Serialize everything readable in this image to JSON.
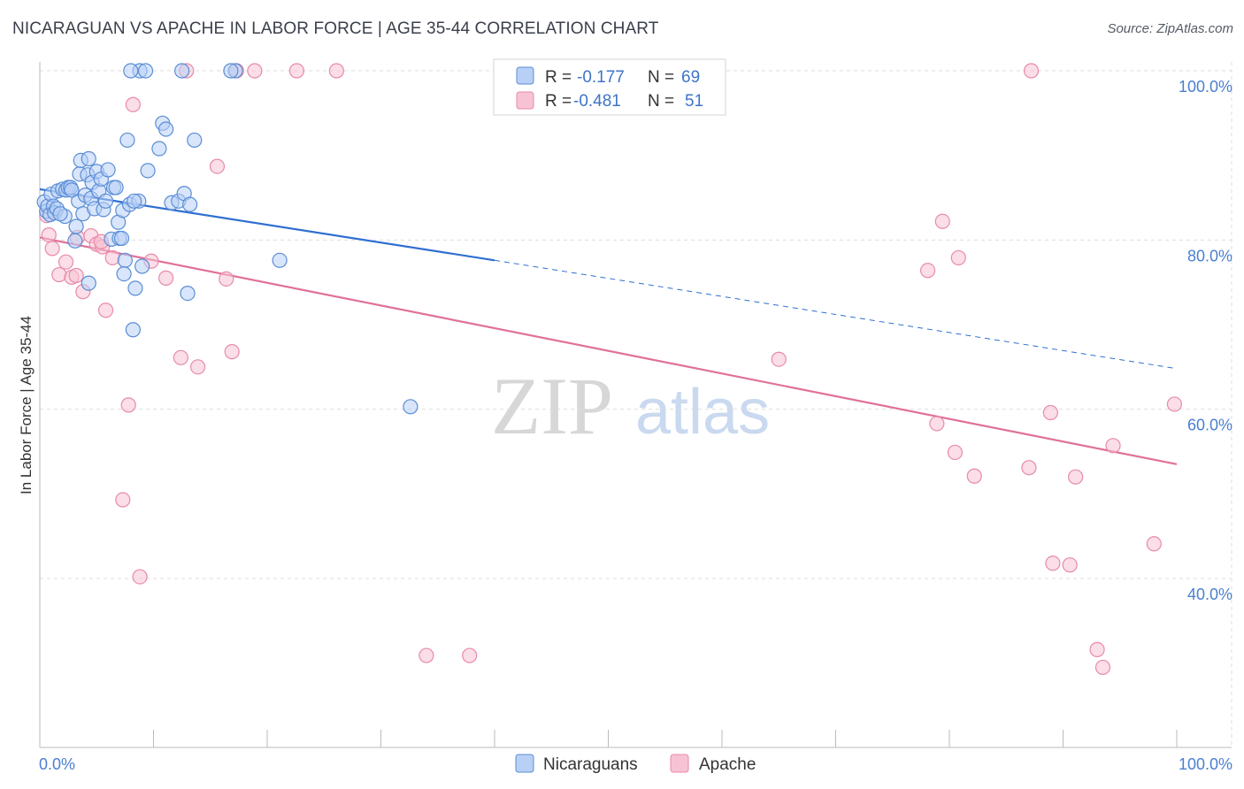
{
  "header": {
    "title": "NICARAGUAN VS APACHE IN LABOR FORCE | AGE 35-44 CORRELATION CHART",
    "source": "Source: ZipAtlas.com"
  },
  "watermark": {
    "zip": "ZIP",
    "atlas": "atlas"
  },
  "colors": {
    "blue_fill": "#b8d0f5",
    "blue_stroke": "#5a8ed6",
    "blue_line": "#2f6fd1",
    "pink_fill": "#f7c3d4",
    "pink_stroke": "#e88aa9",
    "pink_line": "#e0709a",
    "grid": "#dddddd",
    "tick_text": "#4a7fd0"
  },
  "chart_data": {
    "type": "scatter",
    "title": "NICARAGUAN VS APACHE IN LABOR FORCE | AGE 35-44 CORRELATION CHART",
    "xlabel": "",
    "ylabel": "In Labor Force | Age 35-44",
    "xlim": [
      0,
      100
    ],
    "ylim": [
      18,
      102
    ],
    "x_tick_labels": [
      "0.0%",
      "100.0%"
    ],
    "y_ticks": [
      40,
      60,
      80,
      100
    ],
    "y_tick_labels": [
      "40.0%",
      "60.0%",
      "80.0%",
      "100.0%"
    ],
    "legend_stats": [
      {
        "series": "Nicaraguans",
        "r_label": "R =",
        "r_value": "-0.177",
        "n_label": "N =",
        "n_value": "69"
      },
      {
        "series": "Apache",
        "r_label": "R =",
        "r_value": "-0.481",
        "n_label": "N =",
        "n_value": "51"
      }
    ],
    "series": [
      {
        "name": "Nicaraguans",
        "trend": {
          "x0": 0,
          "y0": 86.0,
          "x1": 40,
          "y1": 77.6,
          "dash_x1": 100,
          "dash_y1": 64.8
        },
        "points": [
          [
            0.4,
            84.5
          ],
          [
            0.6,
            83.4
          ],
          [
            0.7,
            84.0
          ],
          [
            0.9,
            83.0
          ],
          [
            1.0,
            85.4
          ],
          [
            1.2,
            84.0
          ],
          [
            1.3,
            83.2
          ],
          [
            1.5,
            83.7
          ],
          [
            1.6,
            85.8
          ],
          [
            2.0,
            86.0
          ],
          [
            2.2,
            82.8
          ],
          [
            2.3,
            85.9
          ],
          [
            2.5,
            86.2
          ],
          [
            2.7,
            86.2
          ],
          [
            3.1,
            79.9
          ],
          [
            3.2,
            81.6
          ],
          [
            3.4,
            84.6
          ],
          [
            3.5,
            87.8
          ],
          [
            3.6,
            89.4
          ],
          [
            3.8,
            83.1
          ],
          [
            4.0,
            85.3
          ],
          [
            4.2,
            87.7
          ],
          [
            4.3,
            89.6
          ],
          [
            4.5,
            84.9
          ],
          [
            4.6,
            86.8
          ],
          [
            4.8,
            83.7
          ],
          [
            5.0,
            88.1
          ],
          [
            5.2,
            85.8
          ],
          [
            5.4,
            87.2
          ],
          [
            5.6,
            83.6
          ],
          [
            5.8,
            84.6
          ],
          [
            6.0,
            88.3
          ],
          [
            6.3,
            80.1
          ],
          [
            6.5,
            86.2
          ],
          [
            6.7,
            86.2
          ],
          [
            6.9,
            82.1
          ],
          [
            7.0,
            80.2
          ],
          [
            7.2,
            80.2
          ],
          [
            7.3,
            83.5
          ],
          [
            7.5,
            77.6
          ],
          [
            7.7,
            91.8
          ],
          [
            7.9,
            84.2
          ],
          [
            8.2,
            69.4
          ],
          [
            8.4,
            74.3
          ],
          [
            8.7,
            84.6
          ],
          [
            9.0,
            76.9
          ],
          [
            9.5,
            88.2
          ],
          [
            10.5,
            90.8
          ],
          [
            10.8,
            93.8
          ],
          [
            11.1,
            93.1
          ],
          [
            11.6,
            84.4
          ],
          [
            12.2,
            84.6
          ],
          [
            12.7,
            85.5
          ],
          [
            13.0,
            73.7
          ],
          [
            13.2,
            84.2
          ],
          [
            13.6,
            91.8
          ],
          [
            1.8,
            83.1
          ],
          [
            2.8,
            85.9
          ],
          [
            4.3,
            74.9
          ],
          [
            7.4,
            76.0
          ],
          [
            8.3,
            84.6
          ],
          [
            8.8,
            100
          ],
          [
            9.3,
            100
          ],
          [
            12.5,
            100
          ],
          [
            17.2,
            100
          ],
          [
            21.1,
            77.6
          ],
          [
            32.6,
            60.3
          ],
          [
            16.8,
            100
          ],
          [
            8.0,
            100
          ]
        ]
      },
      {
        "name": "Apache",
        "trend": {
          "x0": 0,
          "y0": 80.3,
          "x1": 100,
          "y1": 53.5
        },
        "points": [
          [
            0.6,
            82.9
          ],
          [
            0.8,
            80.6
          ],
          [
            1.1,
            79.0
          ],
          [
            1.7,
            75.9
          ],
          [
            2.3,
            77.4
          ],
          [
            2.8,
            75.6
          ],
          [
            3.3,
            80.3
          ],
          [
            3.8,
            73.9
          ],
          [
            4.5,
            80.5
          ],
          [
            5.0,
            79.5
          ],
          [
            5.5,
            79.2
          ],
          [
            5.8,
            71.7
          ],
          [
            6.4,
            77.9
          ],
          [
            7.3,
            49.3
          ],
          [
            7.8,
            60.5
          ],
          [
            8.2,
            96.0
          ],
          [
            8.8,
            40.2
          ],
          [
            9.8,
            77.5
          ],
          [
            11.1,
            75.5
          ],
          [
            12.4,
            66.1
          ],
          [
            12.9,
            100
          ],
          [
            13.9,
            65.0
          ],
          [
            15.6,
            88.7
          ],
          [
            16.4,
            75.4
          ],
          [
            16.9,
            66.8
          ],
          [
            17.3,
            100
          ],
          [
            18.9,
            100
          ],
          [
            22.6,
            100
          ],
          [
            26.1,
            100
          ],
          [
            34.0,
            30.9
          ],
          [
            37.8,
            30.9
          ],
          [
            65.0,
            65.9
          ],
          [
            78.1,
            76.4
          ],
          [
            78.9,
            58.3
          ],
          [
            79.4,
            82.2
          ],
          [
            80.5,
            54.9
          ],
          [
            80.8,
            77.9
          ],
          [
            82.2,
            52.1
          ],
          [
            87.0,
            53.1
          ],
          [
            87.2,
            100
          ],
          [
            88.9,
            59.6
          ],
          [
            89.1,
            41.8
          ],
          [
            90.6,
            41.6
          ],
          [
            91.1,
            52.0
          ],
          [
            93.0,
            31.6
          ],
          [
            93.5,
            29.5
          ],
          [
            94.4,
            55.7
          ],
          [
            98.0,
            44.1
          ],
          [
            99.8,
            60.6
          ],
          [
            5.4,
            79.8
          ],
          [
            3.2,
            75.8
          ]
        ]
      }
    ],
    "bottom_legend": [
      "Nicaraguans",
      "Apache"
    ]
  }
}
